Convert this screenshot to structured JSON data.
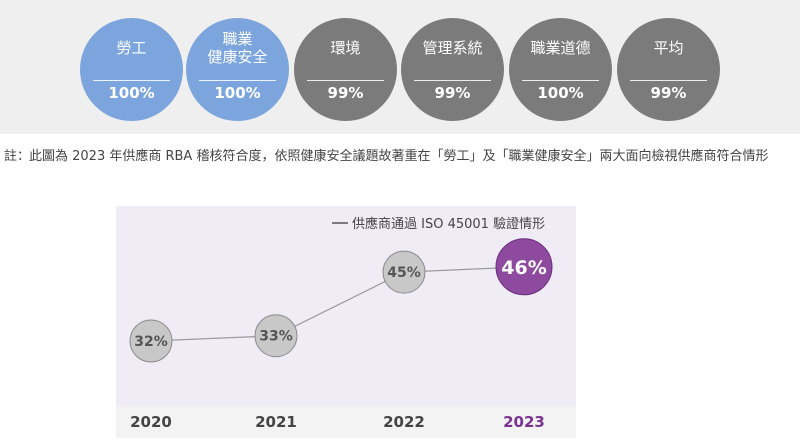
{
  "compliance": {
    "items": [
      {
        "label": "勞工",
        "value": "100%",
        "color": "#7ba5dc"
      },
      {
        "label": "職業\n健康安全",
        "value": "100%",
        "color": "#7ba5dc"
      },
      {
        "label": "環境",
        "value": "99%",
        "color": "#7b7b7b"
      },
      {
        "label": "管理系統",
        "value": "99%",
        "color": "#7b7b7b"
      },
      {
        "label": "職業道德",
        "value": "100%",
        "color": "#7b7b7b"
      },
      {
        "label": "平均",
        "value": "99%",
        "color": "#7b7b7b"
      }
    ]
  },
  "note": {
    "prefix": "註：",
    "text": "此圖為 2023 年供應商 RBA 稽核符合度，依照健康安全議題故著重在「勞工」及「職業健康安全」兩大面向檢視供應商符合情形"
  },
  "chart_data": {
    "type": "line",
    "categories": [
      "2020",
      "2021",
      "2022",
      "2023"
    ],
    "series": [
      {
        "name": "供應商通過 ISO 45001 驗證情形",
        "values": [
          32,
          33,
          45,
          46
        ]
      }
    ],
    "data_labels": [
      "32%",
      "33%",
      "45%",
      "46%"
    ],
    "highlight_index": 3,
    "legend": "top-right",
    "colors": {
      "plot_bg": "#f0ecf5",
      "marker": "#c8c8c8",
      "marker_stroke": "#8a8a8a",
      "highlight": "#8e4a9e",
      "highlight_stroke": "#6b2f7c",
      "line": "#9a9a9a",
      "axis_text": "#444444",
      "highlight_text": "#7a3390"
    }
  }
}
